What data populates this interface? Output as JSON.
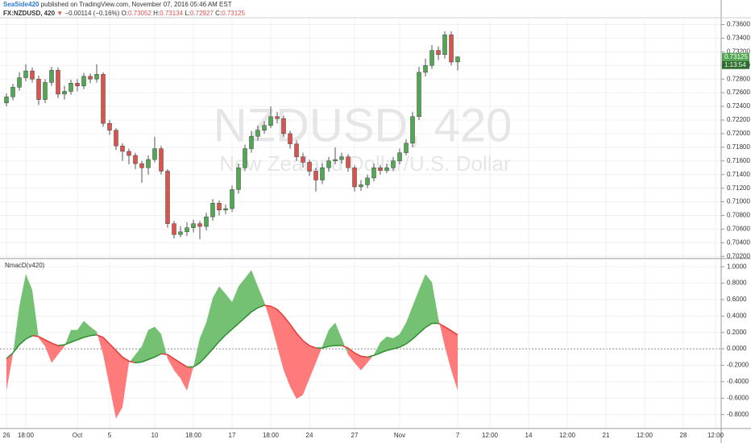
{
  "header": {
    "author": "SeaSide420",
    "published": "published on TradingView.com, November 07, 2016 05:46 AM EST",
    "symbol": "FX:NZDUSD, 420",
    "change_arrow": "▼",
    "change": "−0.00114 (−0.16%)",
    "ohlc": [
      {
        "label": "O:",
        "value": "0.73052"
      },
      {
        "label": "H:",
        "value": "0.73134"
      },
      {
        "label": "L:",
        "value": "0.72927"
      },
      {
        "label": "C:",
        "value": "0.73125"
      }
    ]
  },
  "chart_data": [
    {
      "type": "candlestick",
      "watermark_title": "NZDUSD, 420",
      "watermark_subtitle": "New Zealand Dollar/U.S. Dollar",
      "last_price_label": "0.73125",
      "countdown": "1:13:54",
      "up_color": "#53a653",
      "down_color": "#d9534f",
      "grid": true,
      "ylim": [
        0.7018,
        0.737
      ],
      "yticks": [
        {
          "value": 0.736,
          "label": "0.73600"
        },
        {
          "value": 0.734,
          "label": "0.73400"
        },
        {
          "value": 0.732,
          "label": "0.73200"
        },
        {
          "value": 0.73,
          "label": "0.73000"
        },
        {
          "value": 0.728,
          "label": "0.72800"
        },
        {
          "value": 0.726,
          "label": "0.72600"
        },
        {
          "value": 0.724,
          "label": "0.72400"
        },
        {
          "value": 0.722,
          "label": "0.72200"
        },
        {
          "value": 0.72,
          "label": "0.72000"
        },
        {
          "value": 0.718,
          "label": "0.71800"
        },
        {
          "value": 0.716,
          "label": "0.71600"
        },
        {
          "value": 0.714,
          "label": "0.71400"
        },
        {
          "value": 0.712,
          "label": "0.71200"
        },
        {
          "value": 0.71,
          "label": "0.71000"
        },
        {
          "value": 0.708,
          "label": "0.70800"
        },
        {
          "value": 0.706,
          "label": "0.70600"
        },
        {
          "value": 0.704,
          "label": "0.70400"
        },
        {
          "value": 0.702,
          "label": "0.70200"
        }
      ],
      "open": [
        0.7245,
        0.7254,
        0.7268,
        0.7282,
        0.7292,
        0.728,
        0.725,
        0.7275,
        0.7293,
        0.7258,
        0.7262,
        0.7274,
        0.727,
        0.7284,
        0.728,
        0.7287,
        0.7215,
        0.7205,
        0.7182,
        0.7174,
        0.7168,
        0.7156,
        0.715,
        0.7162,
        0.7178,
        0.7145,
        0.7068,
        0.7052,
        0.7056,
        0.7062,
        0.7068,
        0.7064,
        0.7078,
        0.7098,
        0.7088,
        0.709,
        0.7118,
        0.715,
        0.7178,
        0.7196,
        0.7205,
        0.7212,
        0.7225,
        0.7222,
        0.72,
        0.7185,
        0.7166,
        0.7158,
        0.7145,
        0.7132,
        0.715,
        0.716,
        0.7162,
        0.7166,
        0.715,
        0.7122,
        0.7125,
        0.7135,
        0.715,
        0.7146,
        0.715,
        0.716,
        0.7172,
        0.7186,
        0.7225,
        0.729,
        0.73,
        0.7322,
        0.7316,
        0.7345,
        0.73052
      ],
      "high": [
        0.7259,
        0.7273,
        0.729,
        0.7302,
        0.7297,
        0.7285,
        0.728,
        0.7298,
        0.7297,
        0.727,
        0.7279,
        0.728,
        0.7289,
        0.7288,
        0.7302,
        0.729,
        0.722,
        0.7208,
        0.7186,
        0.7178,
        0.7172,
        0.716,
        0.7168,
        0.7195,
        0.7182,
        0.7148,
        0.7072,
        0.7064,
        0.707,
        0.7074,
        0.7072,
        0.7084,
        0.7104,
        0.7102,
        0.7096,
        0.7124,
        0.7156,
        0.7184,
        0.7204,
        0.7212,
        0.7218,
        0.724,
        0.7232,
        0.7226,
        0.7204,
        0.719,
        0.7172,
        0.7162,
        0.715,
        0.7156,
        0.7166,
        0.718,
        0.7172,
        0.717,
        0.7154,
        0.7132,
        0.714,
        0.7156,
        0.7154,
        0.7156,
        0.7166,
        0.7178,
        0.7192,
        0.7232,
        0.7298,
        0.731,
        0.733,
        0.7328,
        0.735,
        0.735,
        0.73134
      ],
      "low": [
        0.724,
        0.7249,
        0.7263,
        0.7277,
        0.7275,
        0.7242,
        0.7245,
        0.727,
        0.7252,
        0.725,
        0.7257,
        0.7262,
        0.7265,
        0.7274,
        0.7275,
        0.721,
        0.7198,
        0.7176,
        0.716,
        0.7155,
        0.7148,
        0.7128,
        0.714,
        0.7158,
        0.714,
        0.7062,
        0.7046,
        0.7048,
        0.705,
        0.7055,
        0.7045,
        0.7058,
        0.7072,
        0.708,
        0.7082,
        0.7085,
        0.7112,
        0.7145,
        0.7172,
        0.719,
        0.72,
        0.7208,
        0.7215,
        0.7195,
        0.7178,
        0.716,
        0.715,
        0.7138,
        0.7115,
        0.7126,
        0.7144,
        0.7155,
        0.7156,
        0.7144,
        0.7115,
        0.7116,
        0.712,
        0.713,
        0.714,
        0.7142,
        0.7145,
        0.7155,
        0.7168,
        0.718,
        0.722,
        0.7284,
        0.7295,
        0.7308,
        0.731,
        0.73,
        0.72927
      ],
      "close": [
        0.7254,
        0.7268,
        0.7282,
        0.7292,
        0.728,
        0.725,
        0.7275,
        0.7293,
        0.7258,
        0.7262,
        0.7274,
        0.727,
        0.7284,
        0.728,
        0.7287,
        0.7215,
        0.7205,
        0.7182,
        0.7174,
        0.7168,
        0.7156,
        0.715,
        0.7162,
        0.7178,
        0.7145,
        0.7068,
        0.7052,
        0.7056,
        0.7062,
        0.7068,
        0.7064,
        0.7078,
        0.7098,
        0.7088,
        0.709,
        0.7118,
        0.715,
        0.7178,
        0.7196,
        0.7205,
        0.7212,
        0.7225,
        0.7222,
        0.72,
        0.7185,
        0.7166,
        0.7158,
        0.7145,
        0.7132,
        0.715,
        0.716,
        0.7162,
        0.7166,
        0.715,
        0.7122,
        0.7125,
        0.7135,
        0.715,
        0.7146,
        0.715,
        0.716,
        0.7172,
        0.7186,
        0.7225,
        0.729,
        0.73,
        0.7322,
        0.7316,
        0.7345,
        0.7305,
        0.73125
      ]
    },
    {
      "type": "indicator",
      "title": "NmacD(v420)",
      "grid": true,
      "ylim": [
        -0.97,
        1.09
      ],
      "yticks": [
        {
          "value": 1,
          "label": "1.0000"
        },
        {
          "value": 0.8,
          "label": "0.8000"
        },
        {
          "value": 0.6,
          "label": "0.6000"
        },
        {
          "value": 0.4,
          "label": "0.4000"
        },
        {
          "value": 0.2,
          "label": "0.2000"
        },
        {
          "value": 0,
          "label": "0.0000"
        },
        {
          "value": -0.2,
          "label": "-0.2000"
        },
        {
          "value": -0.4,
          "label": "-0.4000"
        },
        {
          "value": -0.6,
          "label": "-0.6000"
        },
        {
          "value": -0.8,
          "label": "-0.8000"
        }
      ],
      "categories": [
        "26",
        null,
        null,
        "18:00",
        null,
        null,
        null,
        null,
        null,
        null,
        null,
        "Oct",
        null,
        null,
        null,
        null,
        "5",
        null,
        null,
        null,
        null,
        null,
        null,
        "10",
        null,
        null,
        null,
        null,
        null,
        "18:00",
        null,
        null,
        null,
        null,
        null,
        "17",
        null,
        null,
        null,
        null,
        null,
        "18:00",
        null,
        null,
        null,
        null,
        null,
        "24",
        null,
        null,
        null,
        null,
        null,
        null,
        "27",
        null,
        null,
        null,
        null,
        null,
        null,
        "Nov",
        null,
        null,
        null,
        null,
        null,
        null,
        null,
        null,
        "7",
        null,
        null,
        null,
        null,
        "12:00",
        null,
        null,
        null,
        null,
        null,
        "14",
        null,
        null,
        null,
        null,
        null,
        "12:00",
        null,
        null,
        null,
        null,
        null,
        "21",
        null,
        null,
        null,
        null,
        null,
        "12:00",
        null,
        null,
        null,
        null,
        null,
        "28",
        null,
        null,
        null,
        null,
        "12:00"
      ],
      "series": [
        {
          "up_color": "#74c174",
          "down_color": "#ff7b7b",
          "values": [
            -0.51,
            -0.07,
            0.52,
            0.91,
            0.72,
            0.13,
            0.03,
            -0.17,
            -0.07,
            0.03,
            0.23,
            0.23,
            0.34,
            0.27,
            0.21,
            -0.07,
            -0.46,
            -0.85,
            -0.71,
            -0.17,
            -0.07,
            0.03,
            0.23,
            0.27,
            0.18,
            -0.12,
            -0.26,
            -0.36,
            -0.51,
            -0.22,
            0.13,
            0.32,
            0.62,
            0.76,
            0.67,
            0.57,
            0.76,
            0.86,
            0.96,
            0.76,
            0.57,
            0.32,
            0.03,
            -0.26,
            -0.46,
            -0.61,
            -0.56,
            -0.36,
            -0.17,
            0.03,
            0.23,
            0.32,
            0.13,
            -0.07,
            -0.17,
            -0.26,
            -0.17,
            -0.07,
            0.08,
            0.15,
            0.13,
            0.18,
            0.32,
            0.52,
            0.72,
            0.91,
            0.81,
            0.37,
            0.03,
            -0.26,
            -0.51,
            null,
            null,
            null,
            null,
            null,
            null,
            null,
            null,
            null,
            null,
            null,
            null,
            null,
            null,
            null,
            null,
            null,
            null,
            null,
            null,
            null,
            null,
            null,
            null,
            null,
            null,
            null,
            null,
            null,
            null,
            null,
            null,
            null,
            null,
            null,
            null,
            null,
            null,
            null,
            null
          ]
        },
        {
          "up_color": "#2e8b2e",
          "down_color": "#e53935",
          "values": [
            -0.12,
            -0.05,
            0.05,
            0.12,
            0.16,
            0.15,
            0.11,
            0.07,
            0.04,
            0.05,
            0.08,
            0.11,
            0.14,
            0.16,
            0.17,
            0.14,
            0.06,
            -0.02,
            -0.1,
            -0.15,
            -0.17,
            -0.16,
            -0.13,
            -0.1,
            -0.06,
            -0.07,
            -0.12,
            -0.17,
            -0.22,
            -0.22,
            -0.17,
            -0.09,
            0,
            0.09,
            0.17,
            0.24,
            0.31,
            0.38,
            0.45,
            0.5,
            0.53,
            0.52,
            0.48,
            0.4,
            0.3,
            0.19,
            0.1,
            0.04,
            0.01,
            0.01,
            0.03,
            0.04,
            0.04,
            0.01,
            -0.05,
            -0.09,
            -0.1,
            -0.08,
            -0.05,
            -0.02,
            0,
            0.02,
            0.06,
            0.12,
            0.19,
            0.26,
            0.31,
            0.31,
            0.27,
            0.22,
            0.17,
            null,
            null,
            null,
            null,
            null,
            null,
            null,
            null,
            null,
            null,
            null,
            null,
            null,
            null,
            null,
            null,
            null,
            null,
            null,
            null,
            null,
            null,
            null,
            null,
            null,
            null,
            null,
            null,
            null,
            null,
            null,
            null,
            null,
            null,
            null,
            null,
            null,
            null,
            null,
            null
          ]
        }
      ]
    }
  ]
}
